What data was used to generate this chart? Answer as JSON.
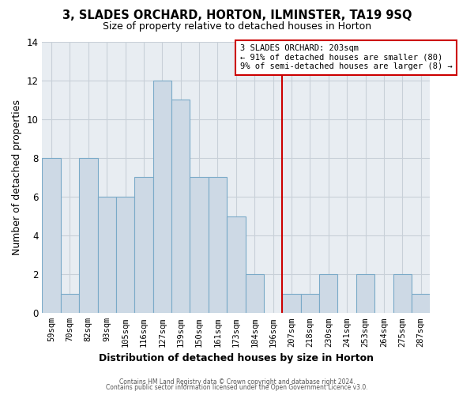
{
  "title": "3, SLADES ORCHARD, HORTON, ILMINSTER, TA19 9SQ",
  "subtitle": "Size of property relative to detached houses in Horton",
  "xlabel": "Distribution of detached houses by size in Horton",
  "ylabel": "Number of detached properties",
  "bin_labels": [
    "59sqm",
    "70sqm",
    "82sqm",
    "93sqm",
    "105sqm",
    "116sqm",
    "127sqm",
    "139sqm",
    "150sqm",
    "161sqm",
    "173sqm",
    "184sqm",
    "196sqm",
    "207sqm",
    "218sqm",
    "230sqm",
    "241sqm",
    "253sqm",
    "264sqm",
    "275sqm",
    "287sqm"
  ],
  "bin_counts": [
    8,
    1,
    8,
    6,
    6,
    7,
    12,
    11,
    7,
    7,
    5,
    2,
    0,
    1,
    1,
    2,
    0,
    2,
    0,
    2,
    1
  ],
  "bar_color": "#cdd9e5",
  "bar_edge_color": "#7aaac8",
  "ylim": [
    0,
    14
  ],
  "yticks": [
    0,
    2,
    4,
    6,
    8,
    10,
    12,
    14
  ],
  "grid_color": "#c8d0d8",
  "vline_color": "#cc0000",
  "vline_x_index": 13,
  "annotation_text_line1": "3 SLADES ORCHARD: 203sqm",
  "annotation_text_line2": "← 91% of detached houses are smaller (80)",
  "annotation_text_line3": "9% of semi-detached houses are larger (8) →",
  "annotation_box_color": "#ffffff",
  "annotation_box_edge": "#cc0000",
  "footer_line1": "Contains HM Land Registry data © Crown copyright and database right 2024.",
  "footer_line2": "Contains public sector information licensed under the Open Government Licence v3.0.",
  "fig_bg_color": "#ffffff",
  "ax_bg_color": "#e8edf2"
}
